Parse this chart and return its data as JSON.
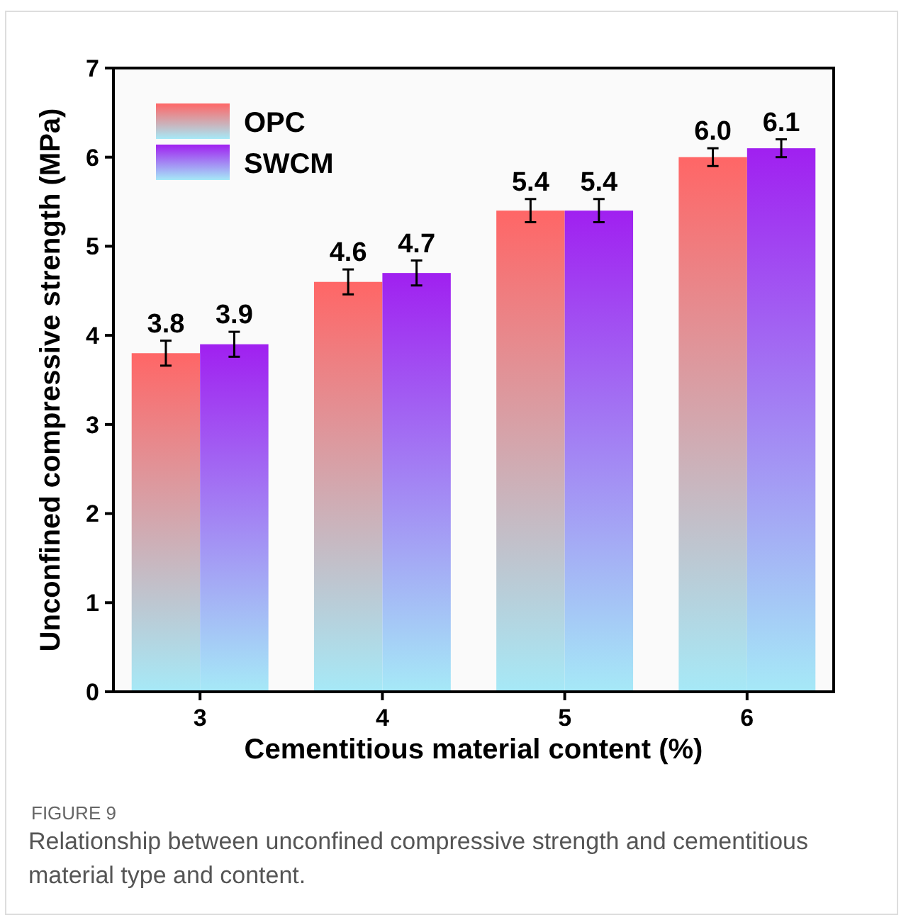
{
  "chart_data": {
    "type": "bar",
    "xlabel": "Cementitious material content (%)",
    "ylabel": "Unconfined compressive strength (MPa)",
    "categories": [
      "3",
      "4",
      "5",
      "6"
    ],
    "series": [
      {
        "name": "OPC",
        "color": "#ff6666",
        "values": [
          3.8,
          4.6,
          5.4,
          6.0
        ],
        "value_labels": [
          "3.8",
          "4.6",
          "5.4",
          "6.0"
        ],
        "errors": [
          0.14,
          0.14,
          0.13,
          0.1
        ]
      },
      {
        "name": "SWCM",
        "color": "#a020f0",
        "values": [
          3.9,
          4.7,
          5.4,
          6.1
        ],
        "value_labels": [
          "3.9",
          "4.7",
          "5.4",
          "6.1"
        ],
        "errors": [
          0.14,
          0.14,
          0.13,
          0.1
        ]
      }
    ],
    "ylim": [
      0,
      7
    ],
    "yticks": [
      0,
      1,
      2,
      3,
      4,
      5,
      6,
      7
    ],
    "legend": "top left",
    "grid": false,
    "annotations": [
      "FIGURE 9",
      "Relationship between unconfined compressive strength and cementitious material type and content."
    ]
  }
}
